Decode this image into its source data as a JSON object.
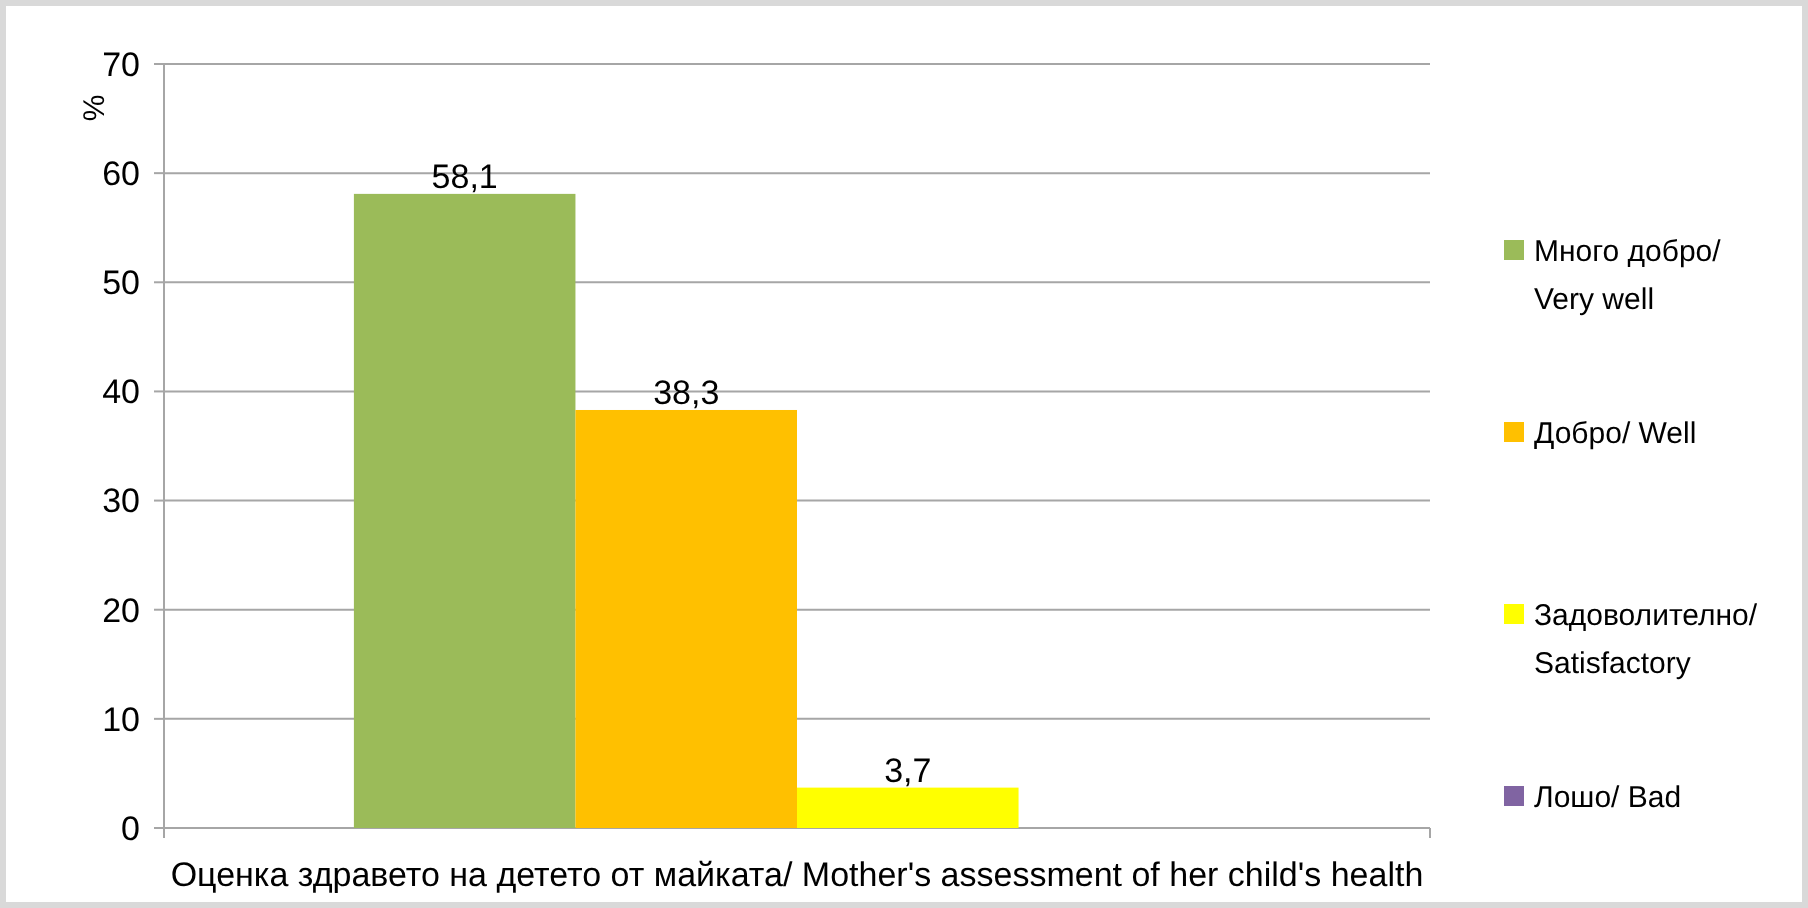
{
  "chart_data": {
    "type": "bar",
    "ylabel": "%",
    "categories": [
      "Оценка здравето на детето  от майката/ Mother's assessment of her child's health"
    ],
    "series": [
      {
        "name": "Много добро/ Very well",
        "color": "#9bbb59",
        "values": [
          58.1
        ],
        "value_labels": [
          "58,1"
        ]
      },
      {
        "name": "Добро/ Well",
        "color": "#ffc000",
        "values": [
          38.3
        ],
        "value_labels": [
          "38,3"
        ]
      },
      {
        "name": "Задоволително/ Satisfactory",
        "color": "#ffff00",
        "values": [
          3.7
        ],
        "value_labels": [
          "3,7"
        ]
      },
      {
        "name": "Лошо/ Bad",
        "color": "#8064a2",
        "values": [
          null
        ],
        "value_labels": [
          null
        ]
      }
    ],
    "ylim": [
      0,
      70
    ],
    "yticks": [
      0,
      10,
      20,
      30,
      40,
      50,
      60,
      70
    ],
    "grid": "y",
    "legend": "right"
  }
}
